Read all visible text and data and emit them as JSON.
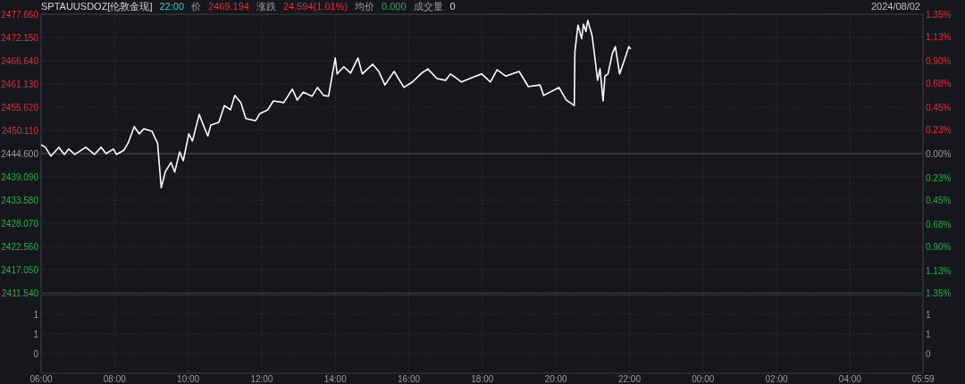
{
  "chart_data": [
    {
      "type": "line",
      "title": "SPTAUUSDOZ[伦敦金现]",
      "annotations": [
        "22:00",
        "价",
        "2469.194",
        "涨跌",
        "24.594(1.01%)",
        "均价",
        "0.000",
        "成交量",
        "0",
        "2024/08/02"
      ],
      "series": [
        {
          "color": "#ffffff",
          "x": [
            "2024-08-02T06:00",
            "2024-08-02T06:07",
            "2024-08-02T06:16",
            "2024-08-02T06:29",
            "2024-08-02T06:38",
            "2024-08-02T06:45",
            "2024-08-02T06:55",
            "2024-08-02T07:13",
            "2024-08-02T07:27",
            "2024-08-02T07:38",
            "2024-08-02T07:46",
            "2024-08-02T07:58",
            "2024-08-02T08:03",
            "2024-08-02T08:15",
            "2024-08-02T08:22",
            "2024-08-02T08:32",
            "2024-08-02T08:40",
            "2024-08-02T08:48",
            "2024-08-02T09:01",
            "2024-08-02T09:05",
            "2024-08-02T09:10",
            "2024-08-02T09:16",
            "2024-08-02T09:23",
            "2024-08-02T09:32",
            "2024-08-02T09:38",
            "2024-08-02T09:46",
            "2024-08-02T09:52",
            "2024-08-02T10:01",
            "2024-08-02T10:07",
            "2024-08-02T10:18",
            "2024-08-02T10:23",
            "2024-08-02T10:32",
            "2024-08-02T10:37",
            "2024-08-02T10:50",
            "2024-08-02T10:59",
            "2024-08-02T11:09",
            "2024-08-02T11:16",
            "2024-08-02T11:26",
            "2024-08-02T11:34",
            "2024-08-02T11:50",
            "2024-08-02T11:57",
            "2024-08-02T12:10",
            "2024-08-02T12:19",
            "2024-08-02T12:36",
            "2024-08-02T12:50",
            "2024-08-02T12:58",
            "2024-08-02T13:08",
            "2024-08-02T13:22",
            "2024-08-02T13:31",
            "2024-08-02T13:41",
            "2024-08-02T13:49",
            "2024-08-02T14:00",
            "2024-08-02T14:03",
            "2024-08-02T14:14",
            "2024-08-02T14:25",
            "2024-08-02T14:37",
            "2024-08-02T14:44",
            "2024-08-02T15:01",
            "2024-08-02T15:11",
            "2024-08-02T15:21",
            "2024-08-02T15:36",
            "2024-08-02T15:52",
            "2024-08-02T16:06",
            "2024-08-02T16:21",
            "2024-08-02T16:31",
            "2024-08-02T16:46",
            "2024-08-02T17:00",
            "2024-08-02T17:08",
            "2024-08-02T17:26",
            "2024-08-02T17:43",
            "2024-08-02T17:59",
            "2024-08-02T18:13",
            "2024-08-02T18:24",
            "2024-08-02T18:38",
            "2024-08-02T19:00",
            "2024-08-02T19:15",
            "2024-08-02T19:34",
            "2024-08-02T19:40",
            "2024-08-02T20:05",
            "2024-08-02T20:17",
            "2024-08-02T20:30",
            "2024-08-02T20:31",
            "2024-08-02T20:36",
            "2024-08-02T20:42",
            "2024-08-02T20:45",
            "2024-08-02T20:49",
            "2024-08-02T20:52",
            "2024-08-02T20:59",
            "2024-08-02T21:04",
            "2024-08-02T21:08",
            "2024-08-02T21:12",
            "2024-08-02T21:17",
            "2024-08-02T21:20",
            "2024-08-02T21:25",
            "2024-08-02T21:32",
            "2024-08-02T21:37",
            "2024-08-02T21:44",
            "2024-08-02T21:52",
            "2024-08-02T21:59",
            "2024-08-02T22:02"
          ],
          "values": [
            2446.7,
            2446.1,
            2444.0,
            2446.1,
            2444.4,
            2445.7,
            2444.4,
            2446.1,
            2444.4,
            2446.1,
            2444.6,
            2445.7,
            2444.4,
            2445.4,
            2447.1,
            2451.0,
            2449.3,
            2450.5,
            2449.9,
            2448.6,
            2447.1,
            2436.5,
            2440.4,
            2442.5,
            2440.2,
            2445.0,
            2442.9,
            2449.3,
            2447.6,
            2453.9,
            2452.0,
            2448.8,
            2451.4,
            2452.0,
            2456.0,
            2455.0,
            2458.4,
            2456.7,
            2452.9,
            2452.4,
            2454.1,
            2455.0,
            2457.1,
            2456.7,
            2459.9,
            2457.3,
            2459.2,
            2458.2,
            2460.3,
            2458.4,
            2458.2,
            2467.3,
            2463.5,
            2465.2,
            2463.7,
            2467.3,
            2463.5,
            2465.8,
            2464.1,
            2460.9,
            2464.1,
            2460.3,
            2461.6,
            2463.7,
            2464.7,
            2462.4,
            2462.0,
            2463.5,
            2461.6,
            2462.6,
            2463.5,
            2461.6,
            2464.5,
            2463.0,
            2464.1,
            2460.5,
            2460.9,
            2458.4,
            2460.3,
            2457.3,
            2456.0,
            2468.8,
            2475.1,
            2471.9,
            2475.3,
            2473.6,
            2476.2,
            2472.6,
            2466.9,
            2462.0,
            2464.7,
            2457.1,
            2463.0,
            2463.5,
            2468.3,
            2470.0,
            2463.5,
            2466.9,
            2470.0,
            2469.4
          ]
        }
      ],
      "xlim": [
        "2024-08-02T06:00",
        "2024-08-03T05:59"
      ],
      "xticks": [
        {
          "value": "2024-08-02T06:00",
          "label": null
        },
        {
          "value": "2024-08-02T08:00",
          "label": null
        },
        {
          "value": "2024-08-02T10:00",
          "label": null
        },
        {
          "value": "2024-08-02T12:00",
          "label": null
        },
        {
          "value": "2024-08-02T14:00",
          "label": null
        },
        {
          "value": "2024-08-02T16:00",
          "label": null
        },
        {
          "value": "2024-08-02T18:00",
          "label": null
        },
        {
          "value": "2024-08-02T20:00",
          "label": null
        },
        {
          "value": "2024-08-02T22:00",
          "label": null
        },
        {
          "value": "2024-08-03T00:00",
          "label": null
        },
        {
          "value": "2024-08-03T02:00",
          "label": null
        },
        {
          "value": "2024-08-03T04:00",
          "label": null
        },
        {
          "value": "2024-08-03T05:59",
          "label": null
        }
      ],
      "ylim": [
        2411.54,
        2477.66
      ],
      "yticks": [
        {
          "value": 2411.54,
          "label": "2411.540"
        },
        {
          "value": 2417.05,
          "label": "2417.050"
        },
        {
          "value": 2422.56,
          "label": "2422.560"
        },
        {
          "value": 2428.07,
          "label": "2428.070"
        },
        {
          "value": 2433.58,
          "label": "2433.580"
        },
        {
          "value": 2439.09,
          "label": "2439.090"
        },
        {
          "value": 2444.6,
          "label": "2444.600"
        },
        {
          "value": 2450.11,
          "label": "2450.110"
        },
        {
          "value": 2455.62,
          "label": "2455.620"
        },
        {
          "value": 2461.13,
          "label": "2461.130"
        },
        {
          "value": 2466.64,
          "label": "2466.640"
        },
        {
          "value": 2472.15,
          "label": "2472.150"
        },
        {
          "value": 2477.66,
          "label": "2477.660"
        }
      ],
      "y2lim": [
        -1.35,
        1.35
      ],
      "y2ticks": [
        {
          "value": -1.35,
          "label": "1.35%"
        },
        {
          "value": -1.13,
          "label": "1.13%"
        },
        {
          "value": -0.9,
          "label": "0.90%"
        },
        {
          "value": -0.68,
          "label": "0.68%"
        },
        {
          "value": -0.45,
          "label": "0.45%"
        },
        {
          "value": -0.23,
          "label": "0.23%"
        },
        {
          "value": 0,
          "label": "0.00%"
        },
        {
          "value": 0.23,
          "label": "0.23%"
        },
        {
          "value": 0.45,
          "label": "0.45%"
        },
        {
          "value": 0.68,
          "label": "0.68%"
        },
        {
          "value": 0.9,
          "label": "0.90%"
        },
        {
          "value": 1.13,
          "label": "1.13%"
        },
        {
          "value": 1.35,
          "label": "1.35%"
        }
      ],
      "ref_lines": [
        {
          "axis": "y",
          "value": 2444.6,
          "color": "#3a3d43"
        }
      ],
      "grid": true,
      "tick_labels": "y",
      "marker": "none",
      "line_style": "solid"
    },
    {
      "type": "bar",
      "xlim": [
        "2024-08-02T06:00",
        "2024-08-03T05:59"
      ],
      "xticks": [
        {
          "value": "2024-08-02T06:00",
          "label": "06:00"
        },
        {
          "value": "2024-08-02T08:00",
          "label": "08:00"
        },
        {
          "value": "2024-08-02T10:00",
          "label": "10:00"
        },
        {
          "value": "2024-08-02T12:00",
          "label": "12:00"
        },
        {
          "value": "2024-08-02T14:00",
          "label": "14:00"
        },
        {
          "value": "2024-08-02T16:00",
          "label": "16:00"
        },
        {
          "value": "2024-08-02T18:00",
          "label": "18:00"
        },
        {
          "value": "2024-08-02T20:00",
          "label": "20:00"
        },
        {
          "value": "2024-08-02T22:00",
          "label": "22:00"
        },
        {
          "value": "2024-08-03T00:00",
          "label": "00:00"
        },
        {
          "value": "2024-08-03T02:00",
          "label": "02:00"
        },
        {
          "value": "2024-08-03T04:00",
          "label": "04:00"
        },
        {
          "value": "2024-08-03T05:59",
          "label": "05:59"
        }
      ],
      "ylim": [
        -0.5,
        1.5
      ],
      "yticks": [
        {
          "value": 0,
          "label": "0"
        },
        {
          "value": 0.5,
          "label": "1"
        },
        {
          "value": 1,
          "label": "1"
        }
      ],
      "y2lim": [
        -0.5,
        1.5
      ],
      "y2ticks": [
        {
          "value": 0,
          "label": "0"
        },
        {
          "value": 0.5,
          "label": "1"
        },
        {
          "value": 1,
          "label": "1"
        }
      ],
      "grid": true
    }
  ]
}
